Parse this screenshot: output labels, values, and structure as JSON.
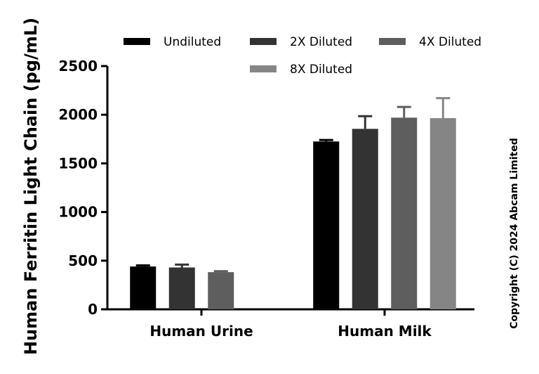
{
  "chart_data": {
    "type": "bar",
    "title": "",
    "xlabel": "",
    "ylabel": "Human Ferritin Light Chain (pg/mL)",
    "ylim": [
      0,
      2500
    ],
    "yticks": [
      0,
      500,
      1000,
      1500,
      2000,
      2500
    ],
    "categories": [
      "Human Urine",
      "Human Milk"
    ],
    "series": [
      {
        "name": "Undiluted",
        "color": "#000000",
        "values": [
          440,
          1725
        ],
        "errors": [
          12,
          15
        ]
      },
      {
        "name": "2X Diluted",
        "color": "#333333",
        "values": [
          430,
          1855
        ],
        "errors": [
          30,
          130
        ]
      },
      {
        "name": "4X Diluted",
        "color": "#5e5e5e",
        "values": [
          382,
          1970
        ],
        "errors": [
          10,
          110
        ]
      },
      {
        "name": "8X Diluted",
        "color": "#858585",
        "values": [
          null,
          1965
        ],
        "errors": [
          null,
          205
        ]
      }
    ],
    "legend_position": "top",
    "grid": false
  },
  "copyright": "Copyright (C) 2024 Abcam Limited"
}
